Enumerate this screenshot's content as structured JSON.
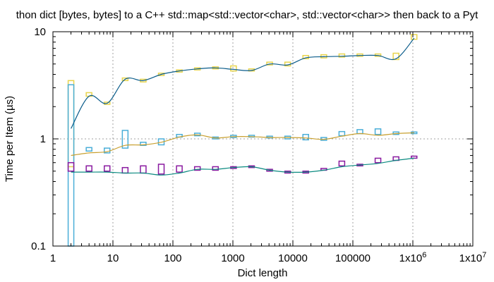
{
  "chart_data": {
    "type": "line",
    "title": "thon dict [bytes, bytes] to a C++ std::map<std::vector<char>, std::vector<char>> then back to a Pyt",
    "xlabel": "Dict length",
    "ylabel": "Time per Item (µs)",
    "x_scale": "log",
    "y_scale": "log",
    "xlim": [
      1,
      10000000
    ],
    "ylim": [
      0.1,
      10
    ],
    "x_ticks": [
      {
        "value": 1,
        "label": "1"
      },
      {
        "value": 10,
        "label": "10"
      },
      {
        "value": 100,
        "label": "100"
      },
      {
        "value": 1000,
        "label": "1000"
      },
      {
        "value": 10000,
        "label": "10000"
      },
      {
        "value": 100000,
        "label": "100000"
      },
      {
        "value": 1000000,
        "label": "1x10",
        "sup": "6"
      },
      {
        "value": 10000000,
        "label": "1x10",
        "sup": "7"
      }
    ],
    "y_ticks": [
      {
        "value": 0.1,
        "label": "0.1"
      },
      {
        "value": 1,
        "label": "1"
      },
      {
        "value": 10,
        "label": "10"
      }
    ],
    "grid": true,
    "x": [
      2,
      4,
      8,
      16,
      32,
      64,
      128,
      256,
      512,
      1024,
      2048,
      4096,
      8192,
      16384,
      32768,
      65536,
      131072,
      262144,
      524288,
      1048576
    ],
    "series": [
      {
        "line_color": "#0a5c8a",
        "box_color": "#e8d44d",
        "values": [
          1.25,
          2.5,
          2.15,
          3.6,
          3.5,
          4.0,
          4.3,
          4.5,
          4.6,
          4.45,
          4.35,
          5.0,
          4.9,
          5.7,
          5.85,
          5.9,
          6.0,
          6.0,
          5.6,
          8.7
        ],
        "box": [
          [
            0.55,
            3.5
          ],
          [
            2.5,
            2.7
          ],
          [
            2.1,
            2.2
          ],
          [
            3.5,
            3.7
          ],
          [
            3.4,
            3.6
          ],
          [
            3.9,
            4.1
          ],
          [
            4.2,
            4.4
          ],
          [
            4.4,
            4.6
          ],
          [
            4.5,
            4.7
          ],
          [
            4.3,
            4.8
          ],
          [
            4.3,
            4.5
          ],
          [
            4.9,
            5.2
          ],
          [
            4.8,
            5.2
          ],
          [
            5.6,
            6.0
          ],
          [
            5.7,
            6.1
          ],
          [
            5.8,
            6.2
          ],
          [
            5.9,
            6.2
          ],
          [
            5.9,
            6.2
          ],
          [
            5.5,
            6.3
          ],
          [
            8.5,
            9.4
          ]
        ]
      },
      {
        "line_color": "#c8a030",
        "box_color": "#4aaed8",
        "values": [
          0.7,
          0.74,
          0.76,
          0.87,
          0.88,
          0.93,
          1.04,
          1.09,
          1.02,
          1.05,
          1.05,
          1.03,
          1.03,
          1.02,
          0.99,
          1.06,
          1.12,
          1.08,
          1.12,
          1.14
        ],
        "box": [
          [
            0.1,
            3.2
          ],
          [
            0.77,
            0.83
          ],
          [
            0.74,
            0.82
          ],
          [
            0.82,
            1.2
          ],
          [
            0.87,
            0.93
          ],
          [
            0.88,
            1.0
          ],
          [
            1.04,
            1.1
          ],
          [
            1.07,
            1.13
          ],
          [
            1.0,
            1.04
          ],
          [
            1.03,
            1.08
          ],
          [
            1.04,
            1.08
          ],
          [
            1.02,
            1.06
          ],
          [
            1.0,
            1.06
          ],
          [
            0.98,
            1.1
          ],
          [
            0.97,
            1.03
          ],
          [
            1.07,
            1.17
          ],
          [
            1.12,
            1.22
          ],
          [
            1.1,
            1.24
          ],
          [
            1.1,
            1.16
          ],
          [
            1.12,
            1.16
          ]
        ]
      },
      {
        "line_color": "#0a8a80",
        "box_color": "#8a1aa0",
        "values": [
          0.49,
          0.49,
          0.49,
          0.48,
          0.48,
          0.46,
          0.48,
          0.52,
          0.52,
          0.54,
          0.55,
          0.51,
          0.49,
          0.49,
          0.51,
          0.55,
          0.57,
          0.59,
          0.63,
          0.66
        ],
        "box": [
          [
            0.5,
            0.6
          ],
          [
            0.5,
            0.56
          ],
          [
            0.5,
            0.56
          ],
          [
            0.48,
            0.54
          ],
          [
            0.48,
            0.56
          ],
          [
            0.47,
            0.58
          ],
          [
            0.49,
            0.56
          ],
          [
            0.51,
            0.55
          ],
          [
            0.51,
            0.55
          ],
          [
            0.53,
            0.55
          ],
          [
            0.54,
            0.56
          ],
          [
            0.5,
            0.52
          ],
          [
            0.48,
            0.5
          ],
          [
            0.48,
            0.5
          ],
          [
            0.51,
            0.53
          ],
          [
            0.56,
            0.62
          ],
          [
            0.56,
            0.58
          ],
          [
            0.6,
            0.66
          ],
          [
            0.63,
            0.68
          ],
          [
            0.66,
            0.69
          ]
        ]
      }
    ]
  }
}
